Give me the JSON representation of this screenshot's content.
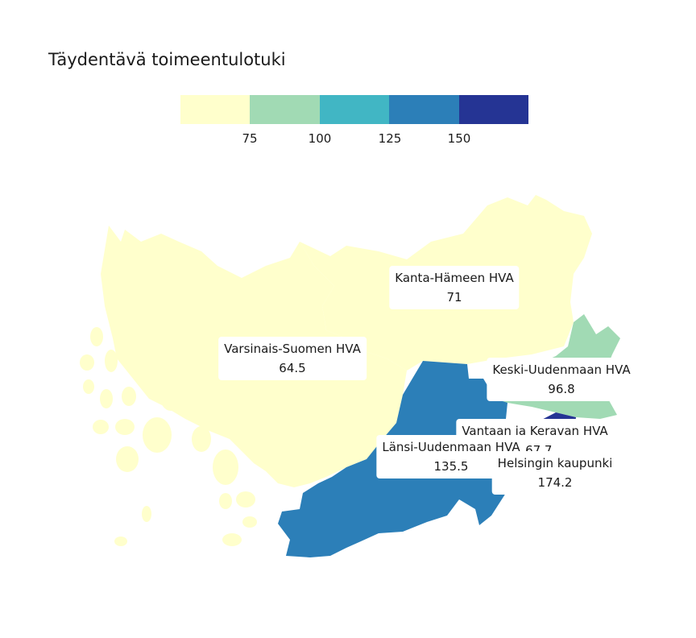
{
  "title": "Täydentävä toimeentulotuki",
  "legend": {
    "colors": [
      "#ffffcc",
      "#a1dab4",
      "#41b6c4",
      "#2c7fb8",
      "#253494"
    ],
    "ticks": [
      "75",
      "100",
      "125",
      "150"
    ]
  },
  "regions": [
    {
      "name": "Kanta-Hämeen HVA",
      "value": "71",
      "color": "#ffffcc"
    },
    {
      "name": "Varsinais-Suomen HVA",
      "value": "64.5",
      "color": "#ffffcc"
    },
    {
      "name": "Keski-Uudenmaan HVA",
      "value": "96.8",
      "color": "#a1dab4"
    },
    {
      "name": "Vantaan ja Keravan HVA",
      "value": "167.7",
      "color": "#253494"
    },
    {
      "name": "Länsi-Uudenmaan HVA",
      "value": "135.5",
      "color": "#2c7fb8"
    },
    {
      "name": "Helsingin kaupunki",
      "value": "174.2",
      "color": "#253494"
    }
  ]
}
